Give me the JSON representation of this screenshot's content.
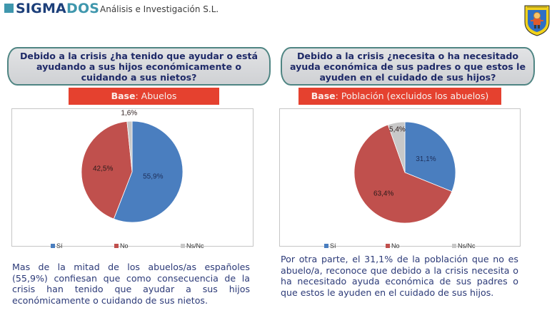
{
  "header": {
    "brand_part1": "SIGMA",
    "brand_part2": "DOS",
    "subtitle": "Análisis e Investigación S.L.",
    "emblem": "association-emblem-icon"
  },
  "colors": {
    "brand_navy": "#1c3f7a",
    "brand_teal": "#3f97ad",
    "banner_red": "#e5412f",
    "question_text": "#1f2a68",
    "si": "#4a7ebf",
    "no": "#c0504d",
    "nsnc": "#c8c8c8"
  },
  "left": {
    "question": "Debido a la crisis ¿ha tenido que ayudar o está ayudando a sus hijos económicamente o cuidando a sus nietos?",
    "base_label": "Base",
    "base_value": ": Abuelos",
    "description": "Mas de la mitad de los abuelos/as españoles (55,9%) confiesan que como consecuencia de la crisis han tenido que ayudar a sus hijos económicamente o cuidando de sus nietos."
  },
  "right": {
    "question": "Debido a la crisis ¿necesita o ha necesitado ayuda económica de sus padres o que estos le ayuden en el cuidado de sus hijos?",
    "base_label": "Base",
    "base_value": ": Población (excluidos los abuelos)",
    "description": "Por otra parte, el 31,1% de la población que no es abuelo/a, reconoce que  debido a la crisis necesita o ha necesitado ayuda económica de sus padres o que estos le ayuden en el cuidado de sus hijos."
  },
  "chart_data": [
    {
      "type": "pie",
      "title": "Debido a la crisis ¿ha tenido que ayudar o está ayudando a sus hijos económicamente o cuidando a sus nietos?",
      "base": "Abuelos",
      "categories": [
        "Sí",
        "No",
        "Ns/Nc"
      ],
      "legend_labels": [
        "Sí",
        "No",
        "Ns/Nc"
      ],
      "values": [
        55.9,
        42.5,
        1.6
      ],
      "data_labels": [
        "55,9%",
        "42,5%",
        "1,6%"
      ],
      "unit": "%",
      "legend_position": "bottom"
    },
    {
      "type": "pie",
      "title": "Debido a la crisis ¿necesita o ha necesitado ayuda económica de sus padres o que estos le ayuden en el cuidado de sus hijos?",
      "base": "Población (excluidos los abuelos)",
      "categories": [
        "Sí",
        "No",
        "Ns/Nc"
      ],
      "legend_labels": [
        "Sí",
        "No",
        "Ns/Nc"
      ],
      "values": [
        31.1,
        63.4,
        5.4
      ],
      "data_labels": [
        "31,1%",
        "63,4%",
        "5,4%"
      ],
      "unit": "%",
      "legend_position": "bottom"
    }
  ]
}
